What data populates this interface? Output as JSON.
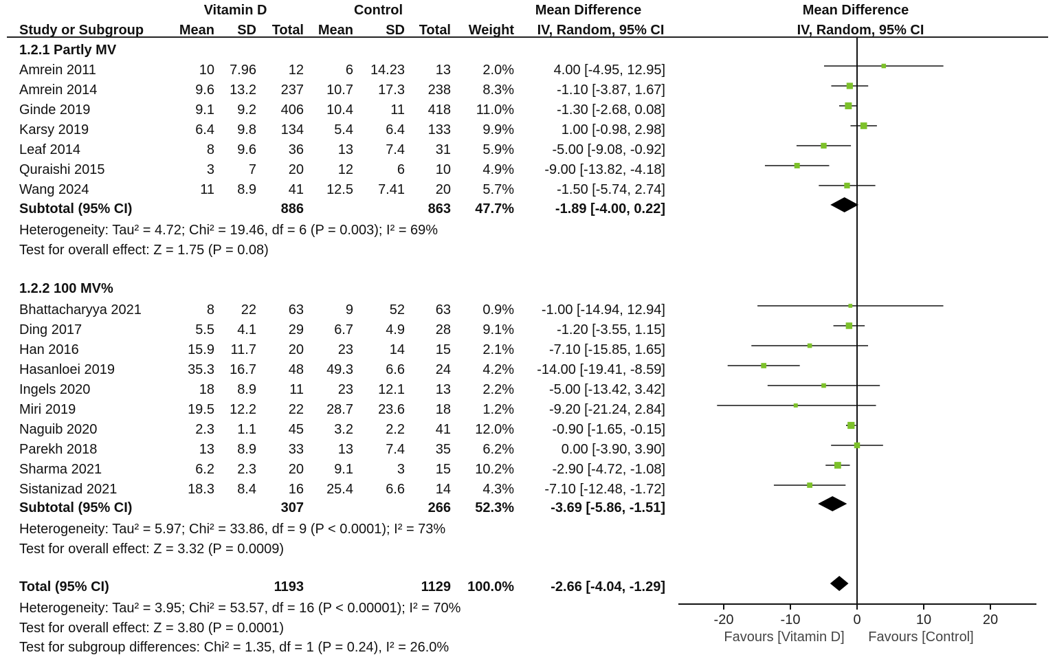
{
  "header": {
    "group1": "Vitamin D",
    "group2": "Control",
    "md_col": "Mean Difference",
    "md_sub": "IV, Random, 95% CI",
    "plot_title": "Mean Difference",
    "plot_sub": "IV, Random, 95% CI",
    "study": "Study or Subgroup",
    "mean": "Mean",
    "sd": "SD",
    "total": "Total",
    "weight": "Weight"
  },
  "subgroups": [
    {
      "label": "1.2.1 Partly MV",
      "studies": [
        {
          "name": "Amrein 2011",
          "m1": "10",
          "sd1": "7.96",
          "n1": "12",
          "m2": "6",
          "sd2": "14.23",
          "n2": "13",
          "weight": "2.0%",
          "ci": "4.00 [-4.95, 12.95]"
        },
        {
          "name": "Amrein 2014",
          "m1": "9.6",
          "sd1": "13.2",
          "n1": "237",
          "m2": "10.7",
          "sd2": "17.3",
          "n2": "238",
          "weight": "8.3%",
          "ci": "-1.10 [-3.87, 1.67]"
        },
        {
          "name": "Ginde 2019",
          "m1": "9.1",
          "sd1": "9.2",
          "n1": "406",
          "m2": "10.4",
          "sd2": "11",
          "n2": "418",
          "weight": "11.0%",
          "ci": "-1.30 [-2.68, 0.08]"
        },
        {
          "name": "Karsy 2019",
          "m1": "6.4",
          "sd1": "9.8",
          "n1": "134",
          "m2": "5.4",
          "sd2": "6.4",
          "n2": "133",
          "weight": "9.9%",
          "ci": "1.00 [-0.98, 2.98]"
        },
        {
          "name": "Leaf 2014",
          "m1": "8",
          "sd1": "9.6",
          "n1": "36",
          "m2": "13",
          "sd2": "7.4",
          "n2": "31",
          "weight": "5.9%",
          "ci": "-5.00 [-9.08, -0.92]"
        },
        {
          "name": "Quraishi 2015",
          "m1": "3",
          "sd1": "7",
          "n1": "20",
          "m2": "12",
          "sd2": "6",
          "n2": "10",
          "weight": "4.9%",
          "ci": "-9.00 [-13.82, -4.18]"
        },
        {
          "name": "Wang 2024",
          "m1": "11",
          "sd1": "8.9",
          "n1": "41",
          "m2": "12.5",
          "sd2": "7.41",
          "n2": "20",
          "weight": "5.7%",
          "ci": "-1.50 [-5.74, 2.74]"
        }
      ],
      "subtotal": {
        "label": "Subtotal (95% CI)",
        "n1": "886",
        "n2": "863",
        "weight": "47.7%",
        "ci": "-1.89 [-4.00, 0.22]"
      },
      "heterogeneity": "Heterogeneity: Tau² = 4.72; Chi² = 19.46, df = 6 (P = 0.003); I² = 69%",
      "overall": "Test for overall effect: Z = 1.75 (P = 0.08)"
    },
    {
      "label": "1.2.2 100 MV%",
      "studies": [
        {
          "name": "Bhattacharyya 2021",
          "m1": "8",
          "sd1": "22",
          "n1": "63",
          "m2": "9",
          "sd2": "52",
          "n2": "63",
          "weight": "0.9%",
          "ci": "-1.00 [-14.94, 12.94]"
        },
        {
          "name": "Ding 2017",
          "m1": "5.5",
          "sd1": "4.1",
          "n1": "29",
          "m2": "6.7",
          "sd2": "4.9",
          "n2": "28",
          "weight": "9.1%",
          "ci": "-1.20 [-3.55, 1.15]"
        },
        {
          "name": "Han 2016",
          "m1": "15.9",
          "sd1": "11.7",
          "n1": "20",
          "m2": "23",
          "sd2": "14",
          "n2": "15",
          "weight": "2.1%",
          "ci": "-7.10 [-15.85, 1.65]"
        },
        {
          "name": "Hasanloei 2019",
          "m1": "35.3",
          "sd1": "16.7",
          "n1": "48",
          "m2": "49.3",
          "sd2": "6.6",
          "n2": "24",
          "weight": "4.2%",
          "ci": "-14.00 [-19.41, -8.59]"
        },
        {
          "name": "Ingels 2020",
          "m1": "18",
          "sd1": "8.9",
          "n1": "11",
          "m2": "23",
          "sd2": "12.1",
          "n2": "13",
          "weight": "2.2%",
          "ci": "-5.00 [-13.42, 3.42]"
        },
        {
          "name": "Miri 2019",
          "m1": "19.5",
          "sd1": "12.2",
          "n1": "22",
          "m2": "28.7",
          "sd2": "23.6",
          "n2": "18",
          "weight": "1.2%",
          "ci": "-9.20 [-21.24, 2.84]"
        },
        {
          "name": "Naguib 2020",
          "m1": "2.3",
          "sd1": "1.1",
          "n1": "45",
          "m2": "3.2",
          "sd2": "2.2",
          "n2": "41",
          "weight": "12.0%",
          "ci": "-0.90 [-1.65, -0.15]"
        },
        {
          "name": "Parekh 2018",
          "m1": "13",
          "sd1": "8.9",
          "n1": "33",
          "m2": "13",
          "sd2": "7.4",
          "n2": "35",
          "weight": "6.2%",
          "ci": "0.00 [-3.90, 3.90]"
        },
        {
          "name": "Sharma 2021",
          "m1": "6.2",
          "sd1": "2.3",
          "n1": "20",
          "m2": "9.1",
          "sd2": "3",
          "n2": "15",
          "weight": "10.2%",
          "ci": "-2.90 [-4.72, -1.08]"
        },
        {
          "name": "Sistanizad 2021",
          "m1": "18.3",
          "sd1": "8.4",
          "n1": "16",
          "m2": "25.4",
          "sd2": "6.6",
          "n2": "14",
          "weight": "4.3%",
          "ci": "-7.10 [-12.48, -1.72]"
        }
      ],
      "subtotal": {
        "label": "Subtotal (95% CI)",
        "n1": "307",
        "n2": "266",
        "weight": "52.3%",
        "ci": "-3.69 [-5.86, -1.51]"
      },
      "heterogeneity": "Heterogeneity: Tau² = 5.97; Chi² = 33.86, df = 9 (P < 0.0001); I² = 73%",
      "overall": "Test for overall effect: Z = 3.32 (P = 0.0009)"
    }
  ],
  "total": {
    "label": "Total (95% CI)",
    "n1": "1193",
    "n2": "1129",
    "weight": "100.0%",
    "ci": "-2.66 [-4.04, -1.29]"
  },
  "footer": {
    "heterogeneity": "Heterogeneity: Tau² = 3.95; Chi² = 53.57, df = 16 (P < 0.00001); I² = 70%",
    "overall": "Test for overall effect: Z = 3.80 (P = 0.0001)",
    "subgroup_diff": "Test for subgroup differences: Chi² = 1.35, df = 1 (P = 0.24), I² = 26.0%"
  },
  "axis": {
    "ticks": [
      "-20",
      "-10",
      "0",
      "10",
      "20"
    ],
    "favours_left": "Favours [Vitamin D]",
    "favours_right": "Favours [Control]"
  },
  "colors": {
    "marker": "#7dc12a",
    "line": "#111111"
  },
  "chart_data": {
    "type": "forest",
    "xlim": [
      -20,
      20
    ],
    "x_ticks": [
      -20,
      -10,
      0,
      10,
      20
    ],
    "studies": [
      {
        "name": "Amrein 2011",
        "md": 4.0,
        "lo": -4.95,
        "hi": 12.95,
        "weight": 2.0
      },
      {
        "name": "Amrein 2014",
        "md": -1.1,
        "lo": -3.87,
        "hi": 1.67,
        "weight": 8.3
      },
      {
        "name": "Ginde 2019",
        "md": -1.3,
        "lo": -2.68,
        "hi": 0.08,
        "weight": 11.0
      },
      {
        "name": "Karsy 2019",
        "md": 1.0,
        "lo": -0.98,
        "hi": 2.98,
        "weight": 9.9
      },
      {
        "name": "Leaf 2014",
        "md": -5.0,
        "lo": -9.08,
        "hi": -0.92,
        "weight": 5.9
      },
      {
        "name": "Quraishi 2015",
        "md": -9.0,
        "lo": -13.82,
        "hi": -4.18,
        "weight": 4.9
      },
      {
        "name": "Wang 2024",
        "md": -1.5,
        "lo": -5.74,
        "hi": 2.74,
        "weight": 5.7
      },
      {
        "name": "Bhattacharyya 2021",
        "md": -1.0,
        "lo": -14.94,
        "hi": 12.94,
        "weight": 0.9
      },
      {
        "name": "Ding 2017",
        "md": -1.2,
        "lo": -3.55,
        "hi": 1.15,
        "weight": 9.1
      },
      {
        "name": "Han 2016",
        "md": -7.1,
        "lo": -15.85,
        "hi": 1.65,
        "weight": 2.1
      },
      {
        "name": "Hasanloei 2019",
        "md": -14.0,
        "lo": -19.41,
        "hi": -8.59,
        "weight": 4.2
      },
      {
        "name": "Ingels 2020",
        "md": -5.0,
        "lo": -13.42,
        "hi": 3.42,
        "weight": 2.2
      },
      {
        "name": "Miri 2019",
        "md": -9.2,
        "lo": -21.24,
        "hi": 2.84,
        "weight": 1.2
      },
      {
        "name": "Naguib 2020",
        "md": -0.9,
        "lo": -1.65,
        "hi": -0.15,
        "weight": 12.0
      },
      {
        "name": "Parekh 2018",
        "md": 0.0,
        "lo": -3.9,
        "hi": 3.9,
        "weight": 6.2
      },
      {
        "name": "Sharma 2021",
        "md": -2.9,
        "lo": -4.72,
        "hi": -1.08,
        "weight": 10.2
      },
      {
        "name": "Sistanizad 2021",
        "md": -7.1,
        "lo": -12.48,
        "hi": -1.72,
        "weight": 4.3
      }
    ],
    "diamonds": [
      {
        "name": "Subtotal 1.2.1 Partly MV",
        "md": -1.89,
        "lo": -4.0,
        "hi": 0.22
      },
      {
        "name": "Subtotal 1.2.2 100 MV%",
        "md": -3.69,
        "lo": -5.86,
        "hi": -1.51
      },
      {
        "name": "Total",
        "md": -2.66,
        "lo": -4.04,
        "hi": -1.29
      }
    ]
  }
}
